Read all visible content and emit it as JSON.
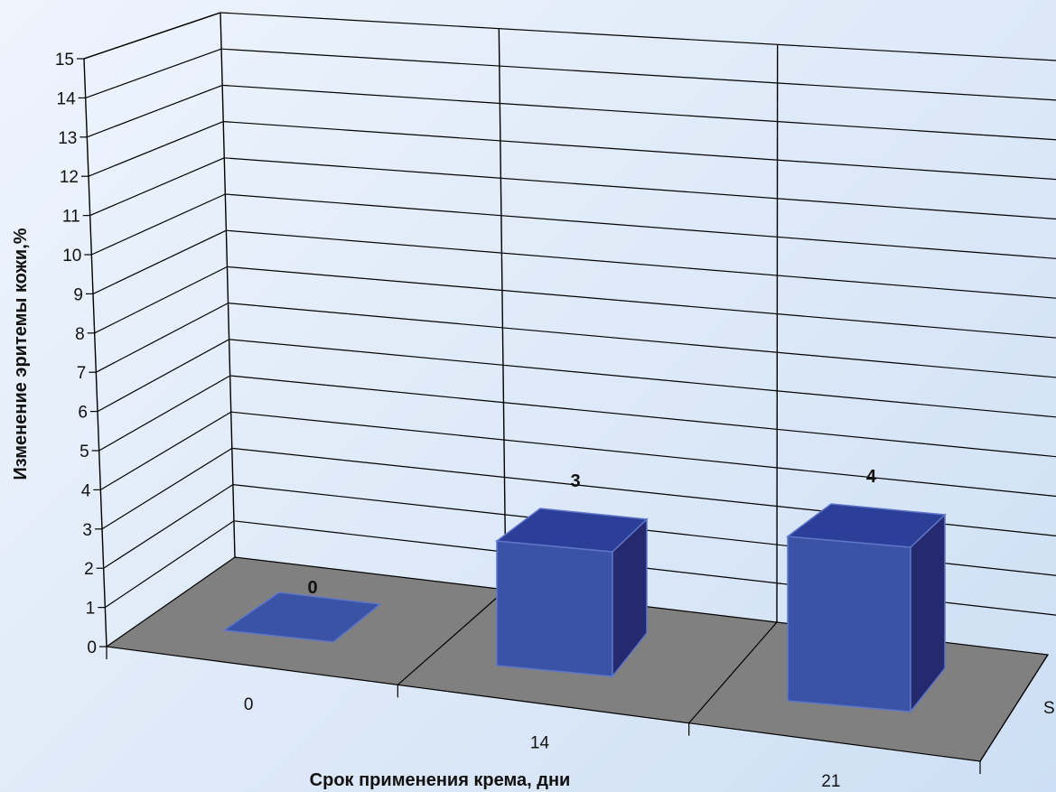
{
  "chart_data": {
    "type": "bar",
    "categories": [
      "0",
      "14",
      "21"
    ],
    "values": [
      0,
      3,
      4
    ],
    "data_labels": [
      "0",
      "3",
      "4"
    ],
    "xlabel": "Срок применения крема, дни",
    "ylabel": "Изменение эритемы кожи,%",
    "ylim": [
      0,
      15
    ],
    "yticks": [
      "0",
      "1",
      "2",
      "3",
      "4",
      "5",
      "6",
      "7",
      "8",
      "9",
      "10",
      "11",
      "12",
      "13",
      "14",
      "15"
    ],
    "depth_axis_label": "S",
    "grid": true,
    "style": "3d-column",
    "colors": {
      "bar_front": "#3a53a4",
      "bar_top": "#2c3f98",
      "bar_side": "#252a6e",
      "floor": "#808080",
      "gridline": "#000000"
    }
  }
}
